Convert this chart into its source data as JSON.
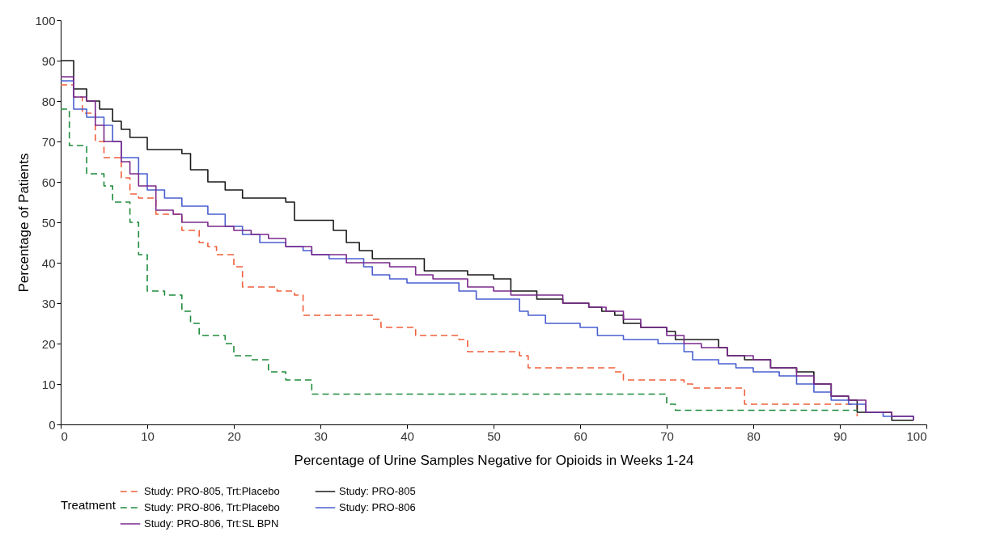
{
  "chart_data": {
    "type": "step",
    "xlabel": "Percentage of Urine Samples Negative for Opioids in Weeks 1-24",
    "ylabel": "Percentage of Patients",
    "legend_title": "Treatment",
    "legend": "bottom",
    "grid": false,
    "xlim": [
      0,
      100
    ],
    "xticks": [
      0,
      10,
      20,
      30,
      40,
      50,
      60,
      70,
      80,
      90,
      100
    ],
    "ylim": [
      0,
      100
    ],
    "yticks": [
      0,
      10,
      20,
      30,
      40,
      50,
      60,
      70,
      80,
      90,
      100
    ],
    "series": [
      {
        "name": "Study: PRO-805, Trt:Placebo",
        "color": "#f0603c",
        "line_style": "dashed",
        "x": [
          0,
          1.5,
          2.5,
          4,
          5,
          7,
          8,
          9,
          11,
          14,
          16,
          17,
          18,
          20,
          21,
          25,
          27,
          28,
          36,
          37,
          41,
          46,
          47,
          53,
          54,
          64,
          65,
          72,
          73,
          79,
          92
        ],
        "values": [
          84,
          81,
          77,
          70,
          66,
          61,
          57,
          56,
          52,
          48,
          45,
          44,
          42,
          39,
          34,
          33,
          32,
          27,
          26,
          24,
          22,
          21,
          18,
          17,
          14,
          13,
          11,
          10,
          9,
          5,
          2
        ]
      },
      {
        "name": "Study: PRO-805",
        "color": "#1a1a1a",
        "line_style": "solid",
        "x": [
          0,
          1.5,
          3,
          4.5,
          6,
          7,
          8,
          10,
          14,
          15,
          17,
          19,
          21,
          26,
          27,
          31.5,
          33,
          34.5,
          36,
          42,
          47,
          50,
          52,
          55,
          58,
          61,
          62.5,
          64,
          65,
          67,
          70,
          71,
          76,
          77,
          79,
          82,
          85,
          87,
          89,
          91,
          92,
          96,
          98.5
        ],
        "values": [
          90,
          83,
          80,
          78,
          75,
          73,
          71,
          68,
          67,
          63,
          60,
          58,
          56,
          55,
          50.5,
          48,
          45,
          43,
          41,
          38,
          37,
          36,
          33,
          31,
          30,
          29,
          28,
          27,
          25,
          24,
          23,
          21,
          19,
          17,
          16,
          14,
          13,
          10,
          7,
          6,
          3,
          1,
          1
        ]
      },
      {
        "name": "Study: PRO-806, Trt:Placebo",
        "color": "#1e8c3c",
        "line_style": "dashed",
        "x": [
          0,
          1,
          3,
          5,
          6,
          8,
          9,
          10,
          12,
          14,
          15,
          16,
          19,
          20,
          22,
          24,
          26,
          29,
          70,
          71,
          73,
          92
        ],
        "values": [
          78,
          69,
          62,
          59,
          55,
          50,
          42,
          33,
          32,
          28,
          25,
          22,
          20,
          17,
          16,
          13,
          11,
          7.5,
          5,
          3.5,
          3.5,
          3.5
        ]
      },
      {
        "name": "Study: PRO-806",
        "color": "#4a5fcf",
        "line_style": "solid",
        "x": [
          0,
          1.5,
          3,
          5,
          6,
          7,
          9,
          10,
          12,
          14,
          17,
          19,
          21,
          23,
          26,
          28,
          29,
          31,
          35,
          36,
          38,
          40,
          46,
          48,
          53,
          54,
          56,
          60,
          62,
          65,
          69,
          72,
          73,
          76,
          78,
          80,
          83,
          85,
          87,
          89,
          91,
          93,
          95,
          98.5
        ],
        "values": [
          85,
          78,
          76,
          74,
          70,
          66,
          62,
          58,
          56,
          54,
          52,
          49,
          47,
          45,
          44,
          43,
          42,
          41,
          39,
          37,
          36,
          35,
          33,
          31,
          28,
          27,
          25,
          24,
          22,
          21,
          20,
          18,
          16,
          15,
          14,
          13,
          12,
          10,
          8,
          6,
          5,
          3,
          2,
          1
        ]
      },
      {
        "name": "Study: PRO-806, Trt:SL BPN",
        "color": "#7a2a8c",
        "line_style": "solid",
        "x": [
          0,
          1.5,
          3,
          4,
          5,
          7,
          8,
          9,
          11,
          13,
          14,
          17,
          20,
          22,
          24,
          26,
          29,
          33,
          38,
          41,
          43,
          47,
          50,
          52,
          58,
          61,
          63,
          65,
          67,
          70,
          72,
          74,
          77,
          80,
          82,
          85,
          87,
          89,
          91,
          93,
          96,
          98.5
        ],
        "values": [
          86,
          81,
          80,
          74,
          70,
          65,
          62,
          59,
          53,
          52,
          50,
          49,
          48,
          47,
          46,
          44,
          42,
          40,
          39,
          37,
          36,
          34,
          33,
          32,
          30,
          29,
          28,
          26,
          24,
          22,
          20,
          19,
          17,
          16,
          14,
          12,
          10,
          7,
          6,
          3,
          2,
          1
        ]
      }
    ]
  }
}
